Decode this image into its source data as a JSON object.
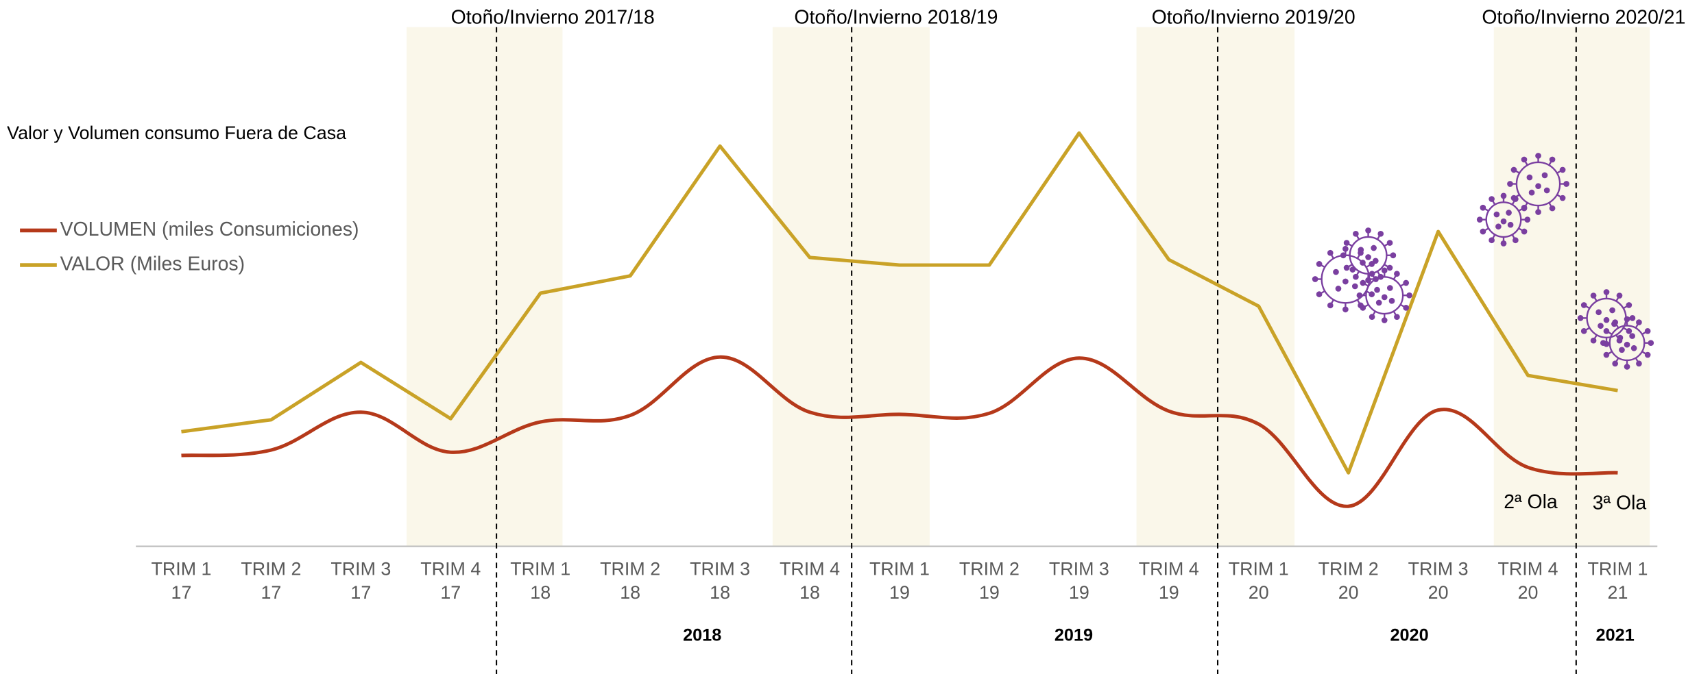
{
  "chart_data": {
    "type": "line",
    "title": "Valor y Volumen consumo Fuera de Casa",
    "categories": [
      [
        "TRIM 1",
        "17"
      ],
      [
        "TRIM 2",
        "17"
      ],
      [
        "TRIM 3",
        "17"
      ],
      [
        "TRIM 4",
        "17"
      ],
      [
        "TRIM 1",
        "18"
      ],
      [
        "TRIM 2",
        "18"
      ],
      [
        "TRIM 3",
        "18"
      ],
      [
        "TRIM 4",
        "18"
      ],
      [
        "TRIM 1",
        "19"
      ],
      [
        "TRIM 2",
        "19"
      ],
      [
        "TRIM 3",
        "19"
      ],
      [
        "TRIM 4",
        "19"
      ],
      [
        "TRIM 1",
        "20"
      ],
      [
        "TRIM 2",
        "20"
      ],
      [
        "TRIM 3",
        "20"
      ],
      [
        "TRIM 4",
        "20"
      ],
      [
        "TRIM 1",
        "21"
      ]
    ],
    "series": [
      {
        "name": "VOLUMEN (miles Consumiciones)",
        "color": "#b5391a",
        "smooth": true,
        "values": [
          84,
          89,
          124,
          87,
          115,
          121,
          175,
          124,
          122,
          123,
          174,
          125,
          113,
          37,
          126,
          73,
          68
        ]
      },
      {
        "name": "VALOR (Miles Euros)",
        "color": "#c9a227",
        "smooth": false,
        "values": [
          106,
          117,
          170,
          118,
          234,
          250,
          370,
          267,
          260,
          260,
          382,
          265,
          222,
          68,
          291,
          158,
          144
        ]
      }
    ],
    "ylim": [
      0,
      480
    ],
    "seasons": [
      "Otoño/Invierno 2017/18",
      "Otoño/Invierno 2018/19",
      "Otoño/Invierno 2019/20",
      "Otoño/Invierno 2020/21"
    ],
    "years": [
      "2018",
      "2019",
      "2020",
      "2021"
    ],
    "annotations": [
      "2ª Ola",
      "3ª Ola"
    ]
  }
}
